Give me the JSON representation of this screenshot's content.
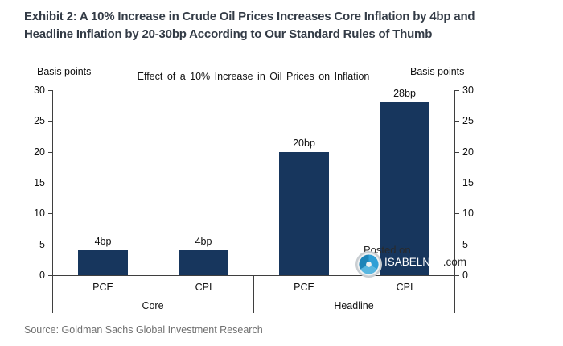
{
  "page": {
    "title_line1": "Exhibit 2: A 10% Increase in Crude Oil Prices Increases Core Inflation by 4bp and",
    "title_line2": "Headline Inflation by 20-30bp According to Our Standard Rules of Thumb",
    "source": "Source: Goldman Sachs Global Investment Research"
  },
  "chart_data": {
    "type": "bar",
    "title": "Effect of a 10% Increase in Oil Prices on Inflation",
    "y_axis_label_left": "Basis points",
    "y_axis_label_right": "Basis points",
    "ylabel": "Basis points",
    "ylim": [
      0,
      30
    ],
    "yticks": [
      0,
      5,
      10,
      15,
      20,
      25,
      30
    ],
    "categories": [
      "PCE",
      "CPI",
      "PCE",
      "CPI"
    ],
    "groups": [
      {
        "label": "Core",
        "span": [
          0,
          1
        ]
      },
      {
        "label": "Headline",
        "span": [
          2,
          3
        ]
      }
    ],
    "values": [
      4,
      4,
      20,
      28
    ],
    "value_labels": [
      "4bp",
      "4bp",
      "20bp",
      "28bp"
    ],
    "bar_color": "#17365d",
    "axis_color": "#3f3f3f",
    "grid": false,
    "legend": false
  },
  "watermark": {
    "posted_on": "Posted on",
    "site_name": "ISABELNET",
    "site_tld": ".com",
    "logo": "isabelnet-swirl-logo",
    "logo_blue": "#2f9fd6"
  }
}
